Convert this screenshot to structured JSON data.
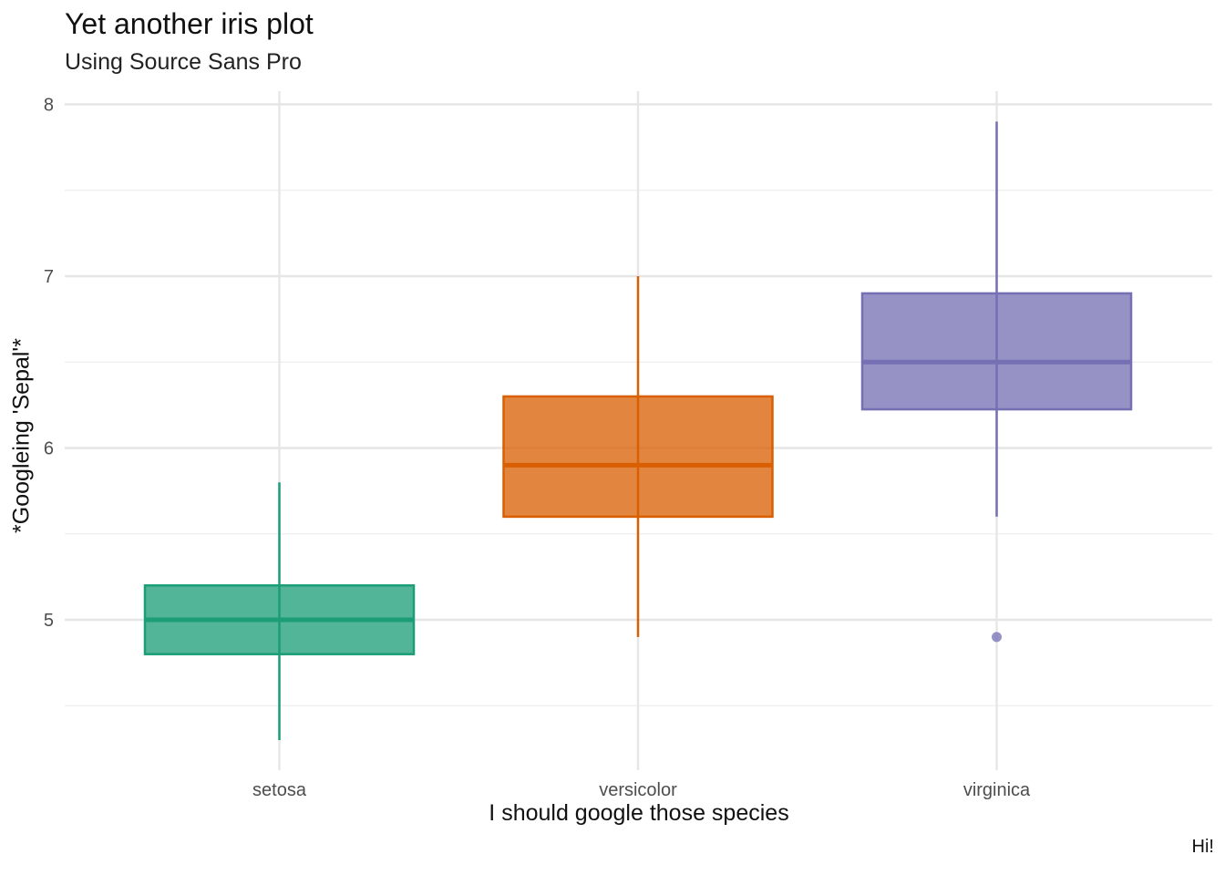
{
  "chart_data": {
    "type": "boxplot",
    "title": "Yet another iris plot",
    "subtitle": "Using Source Sans Pro",
    "caption": "Hi!",
    "xlabel": "I should google those species",
    "ylabel": "*Googleing 'Sepal'*",
    "categories": [
      "setosa",
      "versicolor",
      "virginica"
    ],
    "ylim": [
      4.2,
      8.08
    ],
    "y_ticks": [
      5,
      6,
      7,
      8
    ],
    "grid": true,
    "boxes": [
      {
        "category": "setosa",
        "whisker_low": 4.3,
        "q1": 4.8,
        "median": 5.0,
        "q3": 5.2,
        "whisker_high": 5.8,
        "outliers": [],
        "color": "#1b9e77"
      },
      {
        "category": "versicolor",
        "whisker_low": 4.9,
        "q1": 5.6,
        "median": 5.9,
        "q3": 6.3,
        "whisker_high": 7.0,
        "outliers": [],
        "color": "#d95f02"
      },
      {
        "category": "virginica",
        "whisker_low": 5.6,
        "q1": 6.225,
        "median": 6.5,
        "q3": 6.9,
        "whisker_high": 7.9,
        "outliers": [
          4.9
        ],
        "color": "#7570b3"
      }
    ]
  }
}
